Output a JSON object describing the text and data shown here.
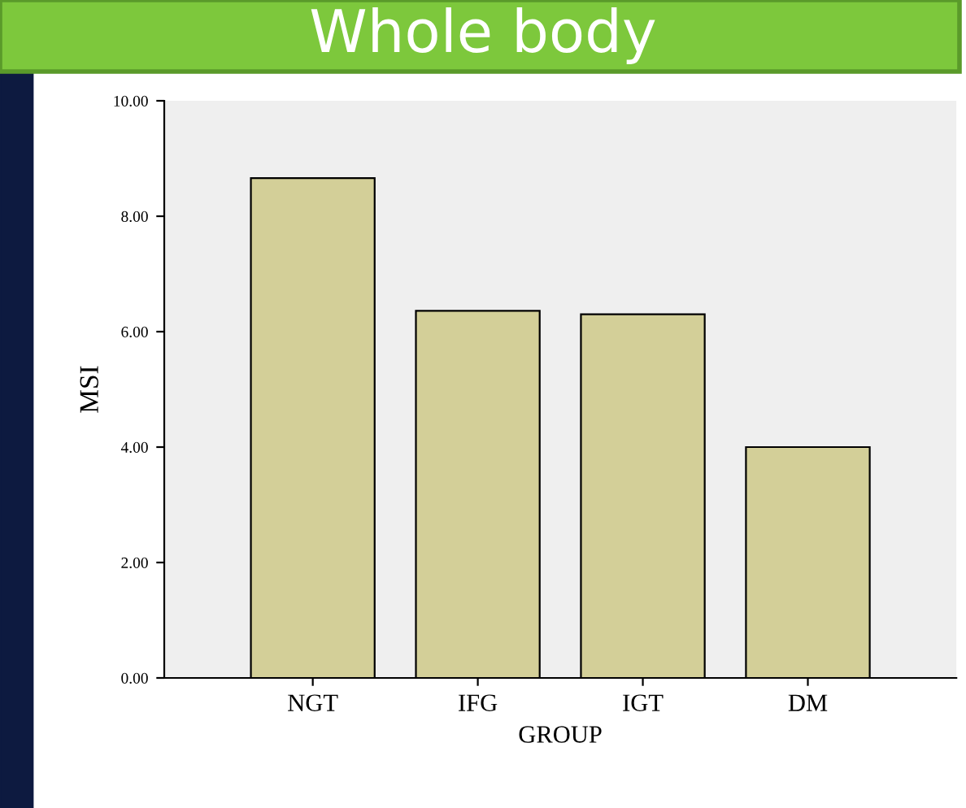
{
  "chart_data": {
    "type": "bar",
    "title": "Whole body",
    "xlabel": "GROUP",
    "ylabel": "MSI",
    "categories": [
      "NGT",
      "IFG",
      "IGT",
      "DM"
    ],
    "values": [
      8.66,
      6.36,
      6.3,
      4.0
    ],
    "color": "#d3cf98",
    "ylim": [
      0,
      10
    ],
    "yticks": [
      {
        "value": 0,
        "label": "0.00"
      },
      {
        "value": 2,
        "label": "2.00"
      },
      {
        "value": 4,
        "label": "4.00"
      },
      {
        "value": 6,
        "label": "6.00"
      },
      {
        "value": 8,
        "label": "8.00"
      },
      {
        "value": 10,
        "label": "10.00"
      }
    ],
    "grid": false,
    "legend": false
  }
}
